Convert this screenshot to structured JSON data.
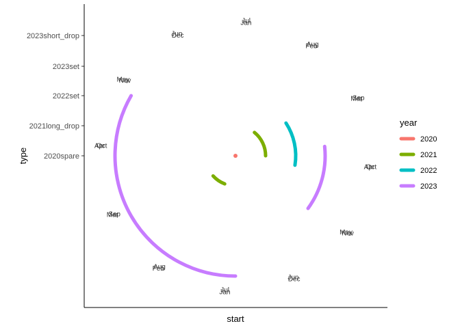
{
  "chart_data": {
    "type": "radial-line",
    "xlabel": "start",
    "ylabel": "type",
    "y_categories": [
      "2020spare",
      "2021long_drop",
      "2022set",
      "2023set",
      "2023short_drop"
    ],
    "month_ring_outer": [
      "Jul",
      "Aug",
      "Sep",
      "Oct",
      "Nov",
      "Dec",
      "Jan",
      "Feb",
      "Mar",
      "Apr",
      "May",
      "Jun"
    ],
    "month_ring_inner": [
      "Jul",
      "Aug",
      "Sep",
      "Oct",
      "Nov",
      "Dec",
      "Jan",
      "Feb",
      "Mar",
      "Apr",
      "May",
      "Jun"
    ],
    "legend": {
      "title": "year",
      "placement": "right",
      "entries": [
        {
          "label": "2020",
          "color": "#F8766D"
        },
        {
          "label": "2021",
          "color": "#7CAE00"
        },
        {
          "label": "2022",
          "color": "#00BFC4"
        },
        {
          "label": "2023",
          "color": "#C77CFF"
        }
      ]
    },
    "series": [
      {
        "year": "2020",
        "category": "2020spare",
        "start_month": 9.0,
        "end_month": 9.05
      },
      {
        "year": "2021",
        "category": "2021long_drop",
        "start_month": 1.3,
        "end_month": 3.0
      },
      {
        "year": "2021",
        "category": "2021long_drop",
        "start_month": 6.7,
        "end_month": 7.6
      },
      {
        "year": "2022",
        "category": "2022set",
        "start_month": 1.9,
        "end_month": 3.3
      },
      {
        "year": "2023",
        "category": "2023set",
        "start_month": 2.8,
        "end_month": 4.2
      },
      {
        "year": "2023",
        "category": "2023short_drop",
        "start_month": 6.0,
        "end_month": 10.0
      }
    ],
    "grid": false
  }
}
